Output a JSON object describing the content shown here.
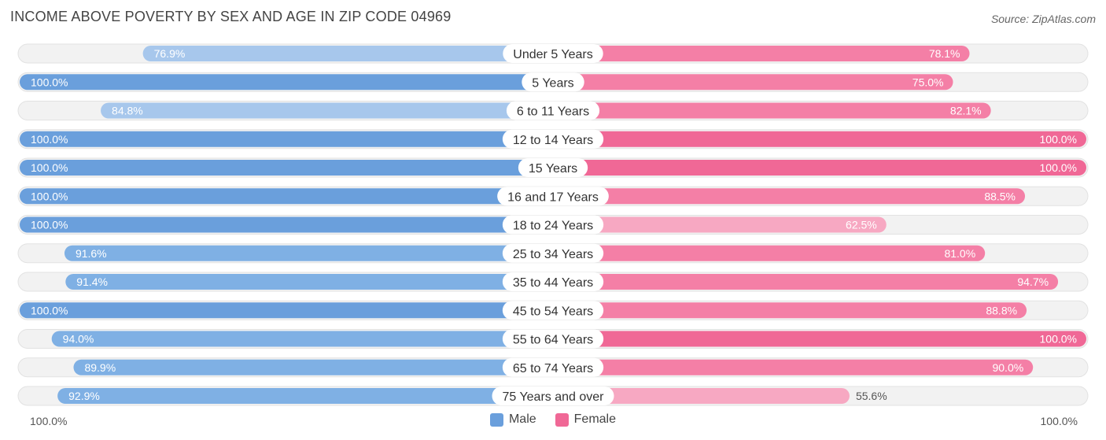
{
  "title": "INCOME ABOVE POVERTY BY SEX AND AGE IN ZIP CODE 04969",
  "source": "Source: ZipAtlas.com",
  "colors": {
    "male_dark": "#6a9fdc",
    "male_light": "#a7c7ec",
    "female_dark": "#f06896",
    "female_light": "#f7a8c2",
    "track": "#eeeeee"
  },
  "legend": {
    "male": "Male",
    "female": "Female"
  },
  "axis": {
    "left": "100.0%",
    "right": "100.0%"
  },
  "chart_data": {
    "type": "bar",
    "orientation": "horizontal-diverging",
    "title": "INCOME ABOVE POVERTY BY SEX AND AGE IN ZIP CODE 04969",
    "xlim": [
      -100,
      100
    ],
    "categories": [
      "Under 5 Years",
      "5 Years",
      "6 to 11 Years",
      "12 to 14 Years",
      "15 Years",
      "16 and 17 Years",
      "18 to 24 Years",
      "25 to 34 Years",
      "35 to 44 Years",
      "45 to 54 Years",
      "55 to 64 Years",
      "65 to 74 Years",
      "75 Years and over"
    ],
    "series": [
      {
        "name": "Male",
        "values": [
          76.9,
          100.0,
          84.8,
          100.0,
          100.0,
          100.0,
          100.0,
          91.6,
          91.4,
          100.0,
          94.0,
          89.9,
          92.9
        ],
        "labels": [
          "76.9%",
          "100.0%",
          "84.8%",
          "100.0%",
          "100.0%",
          "100.0%",
          "100.0%",
          "91.6%",
          "91.4%",
          "100.0%",
          "94.0%",
          "89.9%",
          "92.9%"
        ]
      },
      {
        "name": "Female",
        "values": [
          78.1,
          75.0,
          82.1,
          100.0,
          100.0,
          88.5,
          62.5,
          81.0,
          94.7,
          88.8,
          100.0,
          90.0,
          55.6
        ],
        "labels": [
          "78.1%",
          "75.0%",
          "82.1%",
          "100.0%",
          "100.0%",
          "88.5%",
          "62.5%",
          "81.0%",
          "94.7%",
          "88.8%",
          "100.0%",
          "90.0%",
          "55.6%"
        ]
      }
    ],
    "legend_position": "bottom-center",
    "grid": false
  }
}
